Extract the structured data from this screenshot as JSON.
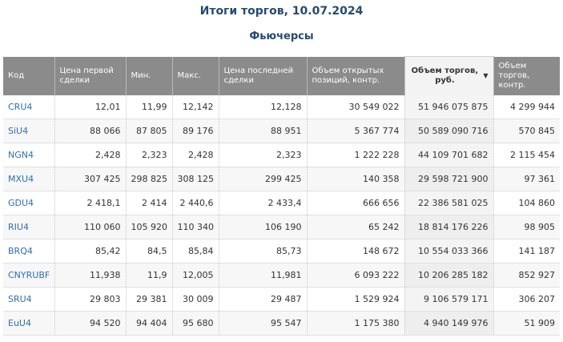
{
  "page": {
    "title": "Итоги торгов, 10.07.2024",
    "subtitle": "Фьючерсы"
  },
  "table": {
    "columns": [
      "Код",
      "Цена первой сделки",
      "Мин.",
      "Макс.",
      "Цена последней сделки",
      "Объем открытых позиций, контр.",
      "Объем торгов, руб.",
      "Объем торгов, контр."
    ],
    "sort_column": "Объем торгов, руб.",
    "rows": [
      [
        "CRU4",
        "12,01",
        "11,99",
        "12,142",
        "12,128",
        "30 549 022",
        "51 946 075 875",
        "4 299 944"
      ],
      [
        "SiU4",
        "88 066",
        "87 805",
        "89 176",
        "88 951",
        "5 367 774",
        "50 589 090 716",
        "570 845"
      ],
      [
        "NGN4",
        "2,428",
        "2,323",
        "2,428",
        "2,323",
        "1 222 228",
        "44 109 701 682",
        "2 115 454"
      ],
      [
        "MXU4",
        "307 425",
        "298 825",
        "308 125",
        "299 425",
        "140 358",
        "29 598 721 900",
        "97 361"
      ],
      [
        "GDU4",
        "2 418,1",
        "2 414",
        "2 440,6",
        "2 433,4",
        "666 656",
        "22 386 581 025",
        "104 860"
      ],
      [
        "RIU4",
        "110 060",
        "105 920",
        "110 340",
        "106 190",
        "65 242",
        "18 814 176 226",
        "98 905"
      ],
      [
        "BRQ4",
        "85,42",
        "84,5",
        "85,84",
        "85,73",
        "148 672",
        "10 554 033 366",
        "141 187"
      ],
      [
        "CNYRUBF",
        "11,938",
        "11,9",
        "12,005",
        "11,981",
        "6 093 222",
        "10 206 285 182",
        "852 927"
      ],
      [
        "SRU4",
        "29 803",
        "29 381",
        "30 009",
        "29 487",
        "1 529 924",
        "9 106 579 171",
        "306 207"
      ],
      [
        "EuU4",
        "94 520",
        "94 404",
        "95 680",
        "95 547",
        "1 175 380",
        "4 940 149 976",
        "51 909"
      ]
    ]
  }
}
